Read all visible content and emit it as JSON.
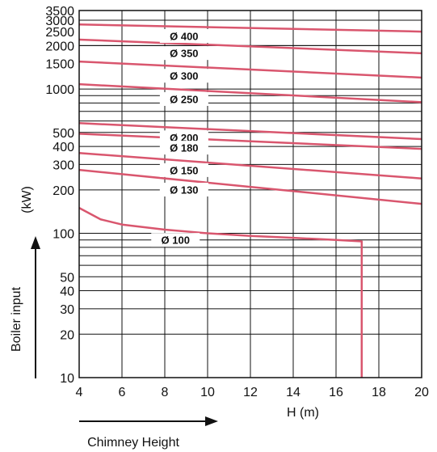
{
  "chart_data": {
    "type": "line",
    "xlabel": "H (m)",
    "ylabel": "(kW)",
    "annotations": {
      "x_direction": "Chimney Height",
      "y_direction": "Boiler input"
    },
    "xlim": [
      4,
      20
    ],
    "ylim": [
      10,
      3500
    ],
    "yscale": "log",
    "grid": true,
    "x_ticks": [
      4,
      6,
      8,
      10,
      12,
      14,
      16,
      18,
      20
    ],
    "x_tick_labels": [
      "4",
      "6",
      "8",
      "10",
      "12",
      "14",
      "16",
      "18",
      "20"
    ],
    "y_ticks": [
      10,
      20,
      30,
      40,
      50,
      100,
      200,
      300,
      400,
      500,
      1000,
      1500,
      2000,
      2500,
      3000,
      3500
    ],
    "y_tick_labels": [
      "10",
      "20",
      "30",
      "40",
      "50",
      "100",
      "200",
      "300",
      "400",
      "500",
      "1000",
      "1500",
      "2000",
      "2500",
      "3000",
      "3500"
    ],
    "line_color": "#d9566e",
    "series": [
      {
        "name": "Ø 400",
        "x": [
          4,
          20
        ],
        "y": [
          2800,
          2500
        ]
      },
      {
        "name": "Ø 350",
        "x": [
          4,
          20
        ],
        "y": [
          2200,
          1770
        ]
      },
      {
        "name": "Ø 300",
        "x": [
          4,
          20
        ],
        "y": [
          1550,
          1200
        ]
      },
      {
        "name": "Ø 250",
        "x": [
          4,
          20
        ],
        "y": [
          1080,
          810
        ]
      },
      {
        "name": "Ø 200",
        "x": [
          4,
          20
        ],
        "y": [
          580,
          450
        ]
      },
      {
        "name": "Ø 180",
        "x": [
          4,
          20
        ],
        "y": [
          490,
          385
        ]
      },
      {
        "name": "Ø 150",
        "x": [
          4,
          20
        ],
        "y": [
          360,
          240
        ]
      },
      {
        "name": "Ø 130",
        "x": [
          4,
          20
        ],
        "y": [
          275,
          160
        ]
      },
      {
        "name": "Ø 100",
        "x": [
          4,
          5,
          6,
          8,
          10,
          12,
          14,
          16,
          17.2,
          17.2
        ],
        "y": [
          150,
          125,
          115,
          106,
          100,
          96,
          93,
          90,
          88,
          10
        ]
      }
    ]
  }
}
